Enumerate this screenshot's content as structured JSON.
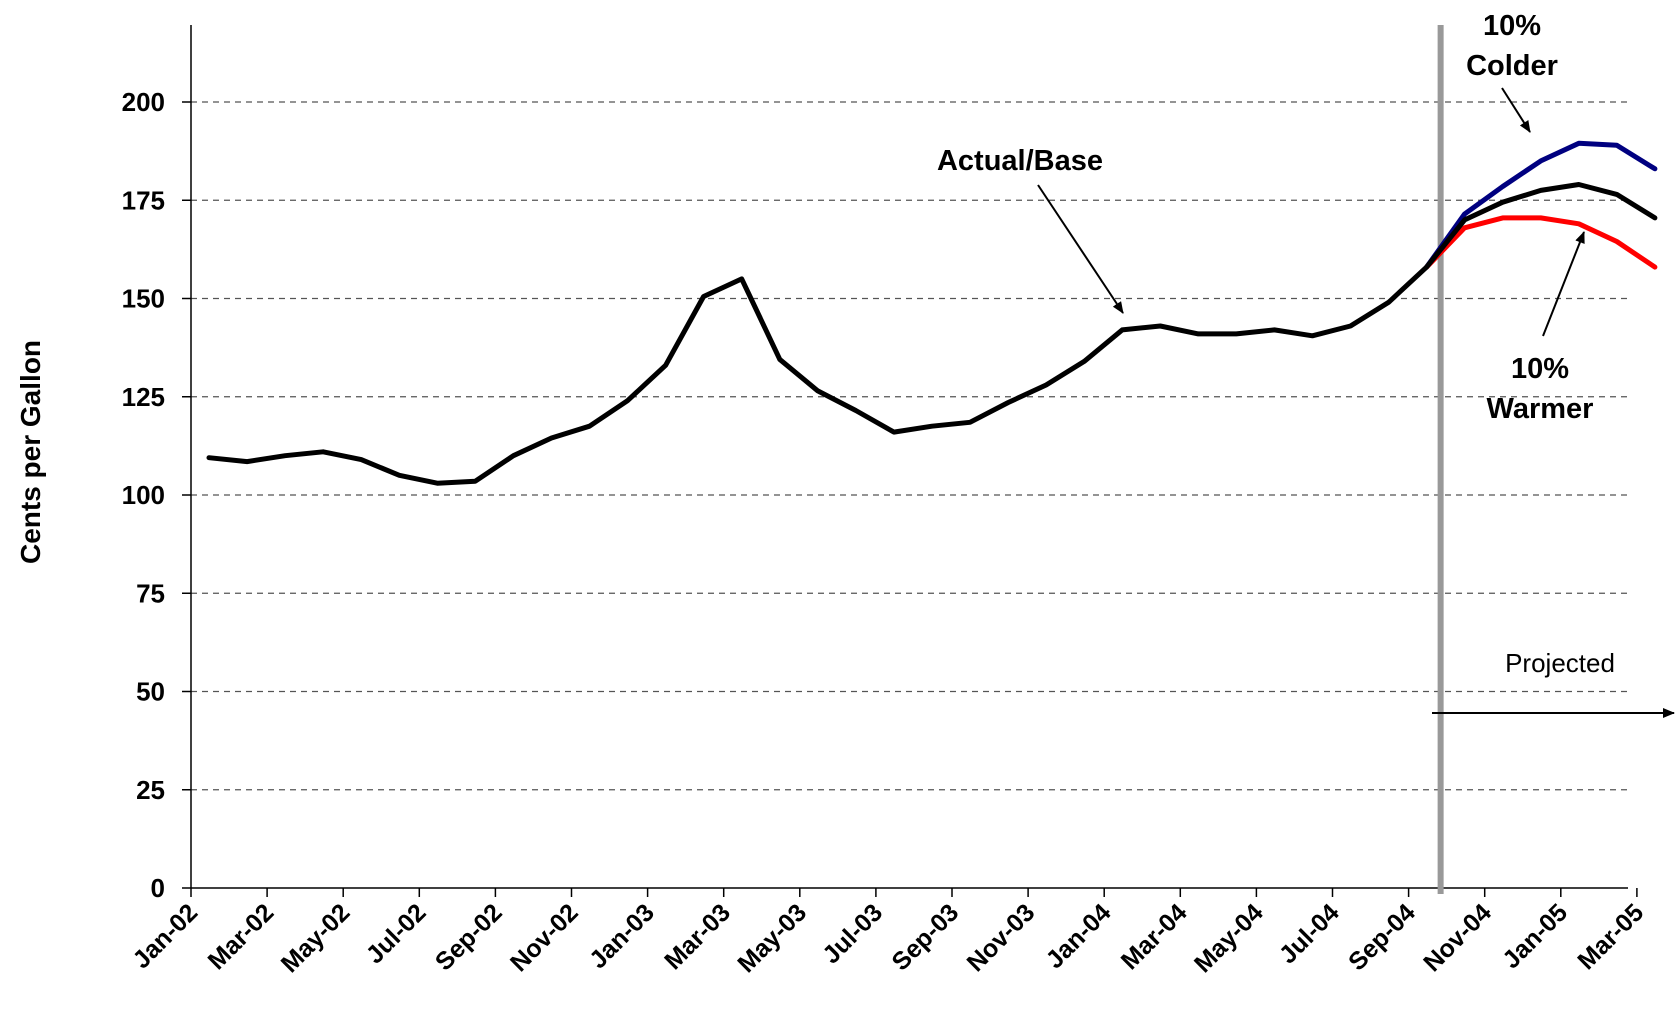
{
  "chart_data": {
    "type": "line",
    "title": "",
    "xlabel": "",
    "ylabel": "Cents per Gallon",
    "ylim": [
      0,
      220
    ],
    "yticks": [
      0,
      25,
      50,
      75,
      100,
      125,
      150,
      175,
      200
    ],
    "grid": "horizontal dashed",
    "tick_labels_x": [
      "Jan-02",
      "Mar-02",
      "May-02",
      "Jul-02",
      "Sep-02",
      "Nov-02",
      "Jan-03",
      "Mar-03",
      "May-03",
      "Jul-03",
      "Sep-03",
      "Nov-03",
      "Jan-04",
      "Mar-04",
      "May-04",
      "Jul-04",
      "Sep-04",
      "Nov-04",
      "Jan-05",
      "Mar-05"
    ],
    "x": [
      "Jan-02",
      "Feb-02",
      "Mar-02",
      "Apr-02",
      "May-02",
      "Jun-02",
      "Jul-02",
      "Aug-02",
      "Sep-02",
      "Oct-02",
      "Nov-02",
      "Dec-02",
      "Jan-03",
      "Feb-03",
      "Mar-03",
      "Apr-03",
      "May-03",
      "Jun-03",
      "Jul-03",
      "Aug-03",
      "Sep-03",
      "Oct-03",
      "Nov-03",
      "Dec-03",
      "Jan-04",
      "Feb-04",
      "Mar-04",
      "Apr-04",
      "May-04",
      "Jun-04",
      "Jul-04",
      "Aug-04",
      "Sep-04",
      "Oct-04",
      "Nov-04",
      "Dec-04",
      "Jan-05",
      "Feb-05",
      "Mar-05"
    ],
    "forecast_start": "Oct-04",
    "series": [
      {
        "name": "Actual/Base",
        "color": "#000000",
        "values": [
          109.5,
          108.5,
          110,
          111,
          109,
          105,
          103,
          103.5,
          110,
          114.5,
          117.5,
          124,
          133,
          150.5,
          155,
          134.5,
          126.5,
          121.5,
          116,
          117.5,
          118.5,
          123.5,
          128,
          134,
          142,
          143,
          141,
          141,
          142,
          140.5,
          143,
          149,
          158,
          170,
          174.5,
          177.5,
          179,
          176.5,
          170.5
        ]
      },
      {
        "name": "10% Colder",
        "color": "#000080",
        "values": [
          null,
          null,
          null,
          null,
          null,
          null,
          null,
          null,
          null,
          null,
          null,
          null,
          null,
          null,
          null,
          null,
          null,
          null,
          null,
          null,
          null,
          null,
          null,
          null,
          null,
          null,
          null,
          null,
          null,
          null,
          null,
          null,
          158,
          171.5,
          178.5,
          185,
          189.5,
          189,
          183
        ]
      },
      {
        "name": "10% Warmer",
        "color": "#ff0000",
        "values": [
          null,
          null,
          null,
          null,
          null,
          null,
          null,
          null,
          null,
          null,
          null,
          null,
          null,
          null,
          null,
          null,
          null,
          null,
          null,
          null,
          null,
          null,
          null,
          null,
          null,
          null,
          null,
          null,
          null,
          null,
          null,
          null,
          158,
          168,
          170.5,
          170.5,
          169,
          164.5,
          158
        ]
      }
    ],
    "annotations": {
      "actual": "Actual/Base",
      "colder_1": "10%",
      "colder_2": "Colder",
      "warmer_1": "10%",
      "warmer_2": "Warmer",
      "projected": "Projected"
    },
    "colors": {
      "grid": "#555555",
      "divider": "#999999",
      "axis": "#000000"
    }
  }
}
